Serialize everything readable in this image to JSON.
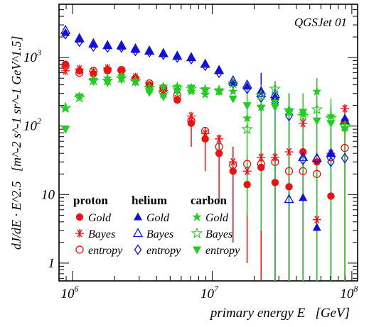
{
  "chart_data": {
    "type": "scatter",
    "title": "QGSJet 01",
    "xlabel": "primary energy E   [GeV]",
    "ylabel": "dJ/dE · E^2.5   [m^-2 s^-1 sr^-1 GeV^1.5]",
    "x_scale": "log",
    "y_scale": "log",
    "xlim": [
      800000,
      110000000
    ],
    "ylim": [
      0.55,
      6000
    ],
    "x_ticks": [
      {
        "value": 1000000,
        "base": "10",
        "exp": "6"
      },
      {
        "value": 10000000,
        "base": "10",
        "exp": "7"
      },
      {
        "value": 100000000,
        "base": "10",
        "exp": "8"
      }
    ],
    "y_ticks": [
      {
        "value": 1,
        "label": "1"
      },
      {
        "value": 10,
        "label": "10"
      },
      {
        "value": 100,
        "base": "10",
        "exp": "2"
      },
      {
        "value": 1000,
        "base": "10",
        "exp": "3"
      }
    ],
    "x": [
      890000,
      1120000,
      1410000,
      1780000,
      2240000,
      2820000,
      3550000,
      4470000,
      5620000,
      7080000,
      8910000,
      11200000,
      14100000,
      17800000,
      22400000,
      28200000,
      35500000,
      44700000,
      56200000,
      70800000,
      89100000
    ],
    "legend": {
      "groups": [
        "proton",
        "helium",
        "carbon"
      ],
      "methods": [
        "Gold",
        "Bayes",
        "entropy"
      ]
    },
    "series": [
      {
        "name": "proton Gold",
        "color": "#ee1111",
        "marker": "circle-filled",
        "values": [
          800,
          640,
          580,
          640,
          640,
          500,
          400,
          340,
          240,
          110,
          65,
          40,
          22,
          14,
          25,
          15,
          13,
          42,
          30,
          9.5,
          120
        ]
      },
      {
        "name": "proton Bayes",
        "color": "#ee1111",
        "marker": "asterisk",
        "values": [
          640,
          680,
          620,
          700,
          640,
          520,
          380,
          330,
          250,
          140,
          78,
          65,
          30,
          22,
          35,
          35,
          42,
          110,
          4.3,
          40,
          180
        ]
      },
      {
        "name": "proton entropy",
        "color": "#ee1111",
        "marker": "circle-open",
        "values": [
          750,
          600,
          640,
          660,
          660,
          490,
          420,
          360,
          280,
          120,
          85,
          50,
          27,
          28,
          28,
          30,
          22,
          22,
          20,
          35,
          48
        ]
      },
      {
        "name": "helium Gold",
        "color": "#1010dd",
        "marker": "triangle-filled",
        "values": [
          2300,
          1850,
          1550,
          1500,
          1450,
          1300,
          1250,
          1150,
          1050,
          1000,
          820,
          650,
          430,
          380,
          330,
          270,
          160,
          9,
          3.3,
          40,
          130
        ]
      },
      {
        "name": "helium Bayes",
        "color": "#1010dd",
        "marker": "triangle-open",
        "values": [
          2500,
          1900,
          1600,
          1500,
          1500,
          1350,
          1250,
          1150,
          1050,
          1000,
          800,
          650,
          460,
          400,
          300,
          290,
          8.5,
          35,
          34,
          40,
          120
        ]
      },
      {
        "name": "helium entropy",
        "color": "#1010dd",
        "marker": "diamond-open",
        "values": [
          2200,
          1700,
          1450,
          1400,
          1400,
          1250,
          1200,
          1100,
          1000,
          950,
          760,
          600,
          420,
          350,
          260,
          220,
          140,
          32,
          33,
          30,
          34
        ]
      },
      {
        "name": "carbon Gold",
        "color": "#22cc22",
        "marker": "star-filled",
        "values": [
          180,
          270,
          480,
          500,
          540,
          440,
          340,
          380,
          380,
          320,
          290,
          320,
          320,
          130,
          190,
          230,
          160,
          150,
          320,
          140,
          95
        ]
      },
      {
        "name": "carbon Bayes",
        "color": "#22cc22",
        "marker": "star-open",
        "values": [
          185,
          260,
          460,
          460,
          500,
          450,
          360,
          300,
          360,
          350,
          340,
          330,
          420,
          90,
          280,
          350,
          170,
          140,
          175,
          130,
          100
        ]
      },
      {
        "name": "carbon entropy",
        "color": "#22cc22",
        "marker": "triangle-down-filled",
        "values": [
          90,
          270,
          450,
          430,
          480,
          440,
          310,
          270,
          320,
          360,
          330,
          320,
          250,
          200,
          185,
          190,
          160,
          160,
          120,
          110,
          90
        ]
      }
    ],
    "error_bars": [
      {
        "series": "proton Gold",
        "x": 7080000,
        "lo": 50,
        "hi": 150
      },
      {
        "series": "proton Gold",
        "x": 8910000,
        "lo": 22,
        "hi": 95
      },
      {
        "series": "proton Gold",
        "x": 11200000,
        "lo": 8,
        "hi": 75
      },
      {
        "series": "proton Gold",
        "x": 14100000,
        "lo": 2,
        "hi": 50
      },
      {
        "series": "proton Gold",
        "x": 17800000,
        "lo": 1,
        "hi": 38
      },
      {
        "series": "proton Gold",
        "x": 22400000,
        "lo": 0.55,
        "hi": 65
      },
      {
        "series": "proton Gold",
        "x": 28200000,
        "lo": 0.55,
        "hi": 45
      },
      {
        "series": "proton Gold",
        "x": 35500000,
        "lo": 0.55,
        "hi": 45
      },
      {
        "series": "proton Gold",
        "x": 44700000,
        "lo": 0.55,
        "hi": 130
      },
      {
        "series": "proton Gold",
        "x": 56200000,
        "lo": 0.55,
        "hi": 70
      },
      {
        "series": "proton Gold",
        "x": 89100000,
        "lo": 0.55,
        "hi": 180
      },
      {
        "series": "helium Gold",
        "x": 22400000,
        "lo": 4,
        "hi": 600
      },
      {
        "series": "helium Gold",
        "x": 28200000,
        "lo": 0.55,
        "hi": 450
      },
      {
        "series": "helium Gold",
        "x": 35500000,
        "lo": 0.55,
        "hi": 300
      },
      {
        "series": "helium Gold",
        "x": 44700000,
        "lo": 0.55,
        "hi": 60
      },
      {
        "series": "helium Gold",
        "x": 56200000,
        "lo": 0.55,
        "hi": 30
      },
      {
        "series": "helium Gold",
        "x": 70800000,
        "lo": 0.55,
        "hi": 200
      },
      {
        "series": "carbon Gold",
        "x": 17800000,
        "lo": 5,
        "hi": 380
      },
      {
        "series": "carbon Gold",
        "x": 22400000,
        "lo": 3,
        "hi": 400
      },
      {
        "series": "carbon Gold",
        "x": 28200000,
        "lo": 0.55,
        "hi": 450
      },
      {
        "series": "carbon Gold",
        "x": 35500000,
        "lo": 0.55,
        "hi": 300
      },
      {
        "series": "carbon Gold",
        "x": 44700000,
        "lo": 0.55,
        "hi": 300
      },
      {
        "series": "carbon Gold",
        "x": 56200000,
        "lo": 0.55,
        "hi": 500
      },
      {
        "series": "carbon Gold",
        "x": 70800000,
        "lo": 0.55,
        "hi": 250
      },
      {
        "series": "carbon Gold",
        "x": 89100000,
        "lo": 0.55,
        "hi": 200
      }
    ],
    "legend_placement": "bottom-left",
    "grid": false
  }
}
